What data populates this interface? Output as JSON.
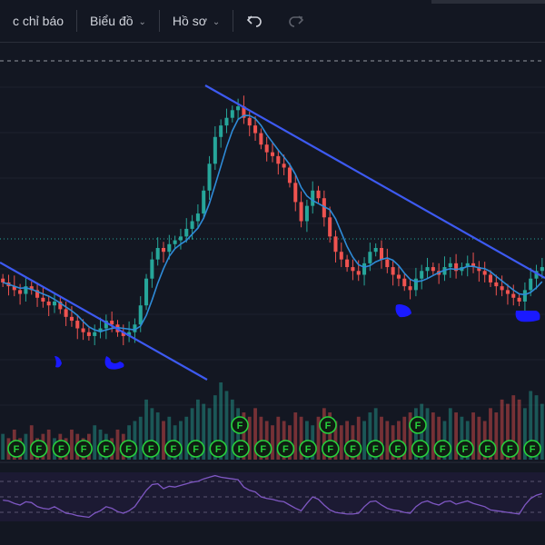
{
  "toolbar": {
    "indicators_label": "c chỉ báo",
    "chart_label": "Biểu đồ",
    "profile_label": "Hồ sơ"
  },
  "colors": {
    "background": "#131722",
    "candle_up": "#26a69a",
    "candle_down": "#ef5350",
    "trendline": "#3d5af1",
    "ma_line": "#2e8bd8",
    "rsi_line": "#7e57c2",
    "marker": "#26d13c",
    "annotation": "#1a1aff"
  },
  "chart_data": {
    "type": "candlestick",
    "price_series": "close",
    "close": [
      54,
      53,
      52,
      51,
      53,
      52,
      50,
      49,
      48,
      49,
      47,
      45,
      44,
      42,
      41,
      40,
      41,
      42,
      44,
      43,
      41,
      40,
      41,
      43,
      48,
      55,
      60,
      63,
      62,
      64,
      65,
      66,
      68,
      70,
      72,
      78,
      85,
      92,
      95,
      97,
      99,
      100,
      97,
      95,
      93,
      90,
      88,
      87,
      85,
      84,
      80,
      75,
      70,
      74,
      78,
      76,
      71,
      66,
      62,
      60,
      58,
      57,
      56,
      59,
      62,
      63,
      60,
      58,
      56,
      55,
      53,
      52,
      55,
      57,
      58,
      57,
      56,
      58,
      59,
      57,
      58,
      59,
      58,
      57,
      56,
      54,
      53,
      52,
      51,
      50,
      49,
      52,
      55,
      57,
      58
    ],
    "volume": [
      6,
      5,
      7,
      5,
      6,
      8,
      5,
      6,
      7,
      5,
      6,
      5,
      7,
      6,
      5,
      6,
      8,
      7,
      6,
      5,
      7,
      6,
      8,
      9,
      10,
      14,
      12,
      11,
      9,
      10,
      8,
      9,
      10,
      12,
      14,
      13,
      12,
      15,
      18,
      16,
      14,
      12,
      11,
      10,
      12,
      10,
      9,
      8,
      10,
      9,
      8,
      11,
      10,
      9,
      8,
      10,
      12,
      11,
      9,
      8,
      9,
      8,
      10,
      9,
      11,
      12,
      10,
      9,
      8,
      9,
      10,
      11,
      12,
      13,
      12,
      11,
      10,
      9,
      12,
      11,
      10,
      9,
      11,
      10,
      9,
      12,
      11,
      14,
      13,
      15,
      14,
      12,
      16,
      15,
      13
    ],
    "rsi": [
      46,
      45,
      42,
      40,
      44,
      43,
      38,
      36,
      35,
      38,
      34,
      30,
      29,
      27,
      26,
      25,
      30,
      33,
      38,
      36,
      32,
      30,
      33,
      38,
      48,
      58,
      65,
      66,
      60,
      63,
      62,
      64,
      66,
      68,
      69,
      72,
      74,
      76,
      74,
      73,
      72,
      71,
      62,
      58,
      56,
      50,
      48,
      47,
      45,
      44,
      40,
      36,
      33,
      42,
      50,
      47,
      40,
      34,
      31,
      30,
      29,
      29,
      30,
      38,
      44,
      45,
      40,
      36,
      34,
      33,
      31,
      30,
      38,
      43,
      45,
      42,
      40,
      44,
      45,
      41,
      43,
      45,
      42,
      40,
      38,
      34,
      33,
      32,
      31,
      30,
      29,
      40,
      48,
      52,
      54
    ],
    "event_labels_row": [
      "F",
      "F",
      "F",
      "F",
      "F",
      "F",
      "F",
      "F",
      "F",
      "F",
      "F",
      "F",
      "F",
      "F",
      "F",
      "F",
      "F",
      "F",
      "F",
      "F",
      "F",
      "F",
      "F",
      "F"
    ],
    "event_labels_upper": [
      "F",
      "F",
      "F"
    ],
    "grid": true
  }
}
